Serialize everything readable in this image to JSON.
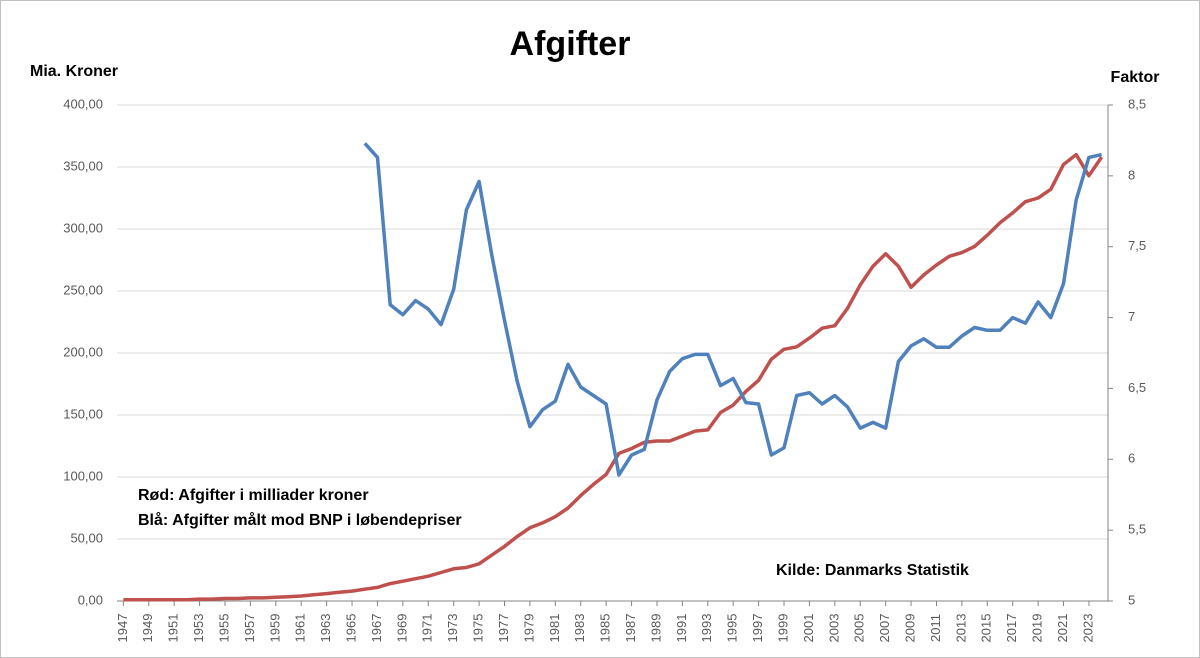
{
  "chart_data": {
    "type": "line",
    "title": "Afgifter",
    "ylabel": "Mia. Kroner",
    "y2label": "Faktor",
    "annotations": [
      "Rød: Afgifter i milliader kroner",
      "Blå: Afgifter målt mod BNP i løbendepriser",
      "Kilde: Danmarks Statistik"
    ],
    "x": [
      1947,
      1948,
      1949,
      1950,
      1951,
      1952,
      1953,
      1954,
      1955,
      1956,
      1957,
      1958,
      1959,
      1960,
      1961,
      1962,
      1963,
      1964,
      1965,
      1966,
      1967,
      1968,
      1969,
      1970,
      1971,
      1972,
      1973,
      1974,
      1975,
      1976,
      1977,
      1978,
      1979,
      1980,
      1981,
      1982,
      1983,
      1984,
      1985,
      1986,
      1987,
      1988,
      1989,
      1990,
      1991,
      1992,
      1993,
      1994,
      1995,
      1996,
      1997,
      1998,
      1999,
      2000,
      2001,
      2002,
      2003,
      2004,
      2005,
      2006,
      2007,
      2008,
      2009,
      2010,
      2011,
      2012,
      2013,
      2014,
      2015,
      2016,
      2017,
      2018,
      2019,
      2020,
      2021,
      2022,
      2023,
      2024
    ],
    "xlim": [
      1946.5,
      2024.5
    ],
    "xticks": [
      1947,
      1949,
      1951,
      1953,
      1955,
      1957,
      1959,
      1961,
      1963,
      1965,
      1967,
      1969,
      1971,
      1973,
      1975,
      1977,
      1979,
      1981,
      1983,
      1985,
      1987,
      1989,
      1991,
      1993,
      1995,
      1997,
      1999,
      2001,
      2003,
      2005,
      2007,
      2009,
      2011,
      2013,
      2015,
      2017,
      2019,
      2021,
      2023
    ],
    "ylim": [
      0,
      400
    ],
    "yticks": [
      {
        "value": 0,
        "label": "0,00"
      },
      {
        "value": 50,
        "label": "50,00"
      },
      {
        "value": 100,
        "label": "100,00"
      },
      {
        "value": 150,
        "label": "150,00"
      },
      {
        "value": 200,
        "label": "200,00"
      },
      {
        "value": 250,
        "label": "250,00"
      },
      {
        "value": 300,
        "label": "300,00"
      },
      {
        "value": 350,
        "label": "350,00"
      },
      {
        "value": 400,
        "label": "400,00"
      }
    ],
    "y2lim": [
      5,
      8.5
    ],
    "y2ticks": [
      5,
      {
        "value": 5.5,
        "label": "5,5"
      },
      6,
      {
        "value": 6.5,
        "label": "6,5"
      },
      7,
      {
        "value": 7.5,
        "label": "7,5"
      },
      8,
      {
        "value": 8.5,
        "label": "8,5"
      }
    ],
    "grid": true,
    "series": [
      {
        "name": "Afgifter i milliader kroner",
        "color": "#c0504d",
        "axis": "y",
        "values": [
          1,
          1,
          1,
          1,
          1,
          1,
          1.5,
          1.5,
          2,
          2,
          2.5,
          2.5,
          3,
          3.5,
          4,
          5,
          6,
          7,
          8,
          9.5,
          11,
          14,
          16,
          18,
          20,
          23,
          26,
          27,
          30,
          37,
          44,
          52,
          59,
          63,
          68,
          75,
          85,
          94,
          102,
          119,
          123,
          128,
          129,
          129,
          133,
          137,
          138,
          152,
          158,
          169,
          178,
          195,
          203,
          205,
          212,
          220,
          222,
          236,
          255,
          270,
          280,
          270,
          253,
          263,
          271,
          278,
          281,
          286,
          295,
          305,
          313,
          322,
          325,
          332,
          352,
          360,
          343,
          358
        ]
      },
      {
        "name": "Afgifter målt mod BNP i løbendepriser",
        "color": "#4f81bd",
        "axis": "y2",
        "values": [
          null,
          null,
          null,
          null,
          null,
          null,
          null,
          null,
          null,
          null,
          null,
          null,
          null,
          null,
          null,
          null,
          null,
          null,
          null,
          8.23,
          8.13,
          7.09,
          7.02,
          7.12,
          7.06,
          6.95,
          7.2,
          7.76,
          7.96,
          7.44,
          6.98,
          6.55,
          6.23,
          6.35,
          6.41,
          6.67,
          6.51,
          6.45,
          6.39,
          5.89,
          6.03,
          6.07,
          6.42,
          6.62,
          6.71,
          6.74,
          6.74,
          6.52,
          6.57,
          6.4,
          6.39,
          6.03,
          6.08,
          6.45,
          6.47,
          6.39,
          6.45,
          6.37,
          6.22,
          6.26,
          6.22,
          6.69,
          6.8,
          6.85,
          6.79,
          6.79,
          6.87,
          6.93,
          6.91,
          6.91,
          7.0,
          6.96,
          7.11,
          7.0,
          7.24,
          7.83,
          8.13,
          8.15
        ]
      }
    ]
  }
}
